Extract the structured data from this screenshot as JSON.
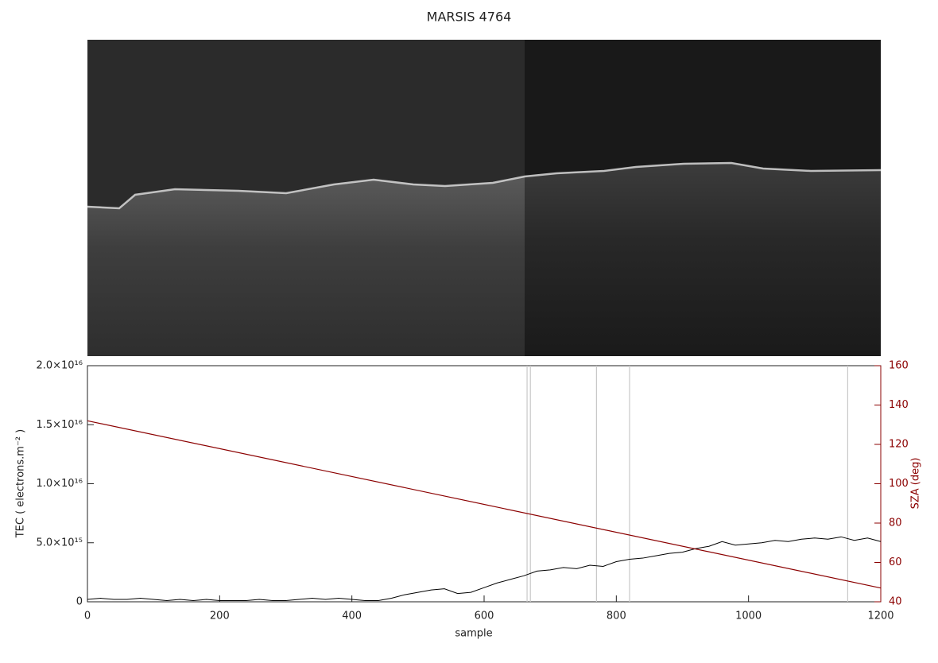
{
  "chart_data": {
    "type": "line",
    "title": "MARSIS 4764",
    "xlabel": "sample",
    "ylabel": "TEC ( electrons.m⁻² )",
    "y2label": "SZA (deg)",
    "xlim": [
      0,
      1200
    ],
    "xticks": [
      0,
      200,
      400,
      600,
      800,
      1000,
      1200
    ],
    "ylim": [
      0,
      2e+16
    ],
    "yticks": [
      0,
      {
        "value": 5000000000000000.0,
        "label": "5.0×10¹⁵"
      },
      {
        "value": 1e+16,
        "label": "1.0×10¹⁶"
      },
      {
        "value": 1.5e+16,
        "label": "1.5×10¹⁶"
      },
      {
        "value": 2e+16,
        "label": "2.0×10¹⁶"
      }
    ],
    "y2lim": [
      40,
      160
    ],
    "y2ticks": [
      40,
      60,
      80,
      100,
      120,
      140,
      160
    ],
    "y2color": "#8b0000",
    "vlines": [
      665,
      670,
      770,
      820,
      1150
    ],
    "vline_color": "#c8c8c8",
    "series": [
      {
        "name": "TEC",
        "color": "#000000",
        "x": [
          0,
          20,
          40,
          60,
          80,
          100,
          120,
          140,
          160,
          180,
          200,
          220,
          240,
          260,
          280,
          300,
          320,
          340,
          360,
          380,
          400,
          420,
          440,
          460,
          480,
          500,
          520,
          540,
          560,
          580,
          600,
          620,
          640,
          660,
          680,
          700,
          720,
          740,
          760,
          780,
          800,
          820,
          840,
          860,
          880,
          900,
          920,
          940,
          960,
          980,
          1000,
          1020,
          1040,
          1060,
          1080,
          1100,
          1120,
          1140,
          1160,
          1180,
          1200
        ],
        "values": [
          200000000000000.0,
          300000000000000.0,
          200000000000000.0,
          200000000000000.0,
          300000000000000.0,
          200000000000000.0,
          100000000000000.0,
          200000000000000.0,
          100000000000000.0,
          200000000000000.0,
          100000000000000.0,
          100000000000000.0,
          100000000000000.0,
          200000000000000.0,
          100000000000000.0,
          100000000000000.0,
          200000000000000.0,
          300000000000000.0,
          200000000000000.0,
          300000000000000.0,
          200000000000000.0,
          100000000000000.0,
          100000000000000.0,
          300000000000000.0,
          600000000000000.0,
          800000000000000.0,
          1000000000000000.0,
          1100000000000000.0,
          700000000000000.0,
          800000000000000.0,
          1200000000000000.0,
          1600000000000000.0,
          1900000000000000.0,
          2200000000000000.0,
          2600000000000000.0,
          2700000000000000.0,
          2900000000000000.0,
          2800000000000000.0,
          3100000000000000.0,
          3000000000000000.0,
          3400000000000000.0,
          3600000000000000.0,
          3700000000000000.0,
          3900000000000000.0,
          4100000000000000.0,
          4200000000000000.0,
          4500000000000000.0,
          4700000000000000.0,
          5100000000000000.0,
          4800000000000000.0,
          4900000000000000.0,
          5000000000000000.0,
          5200000000000000.0,
          5100000000000000.0,
          5300000000000000.0,
          5400000000000000.0,
          5300000000000000.0,
          5500000000000000.0,
          5200000000000000.0,
          5400000000000000.0,
          5100000000000000.0
        ]
      },
      {
        "name": "SZA",
        "color": "#8b0000",
        "axis": "y2",
        "x": [
          0,
          1200
        ],
        "values": [
          132,
          47
        ]
      }
    ]
  }
}
